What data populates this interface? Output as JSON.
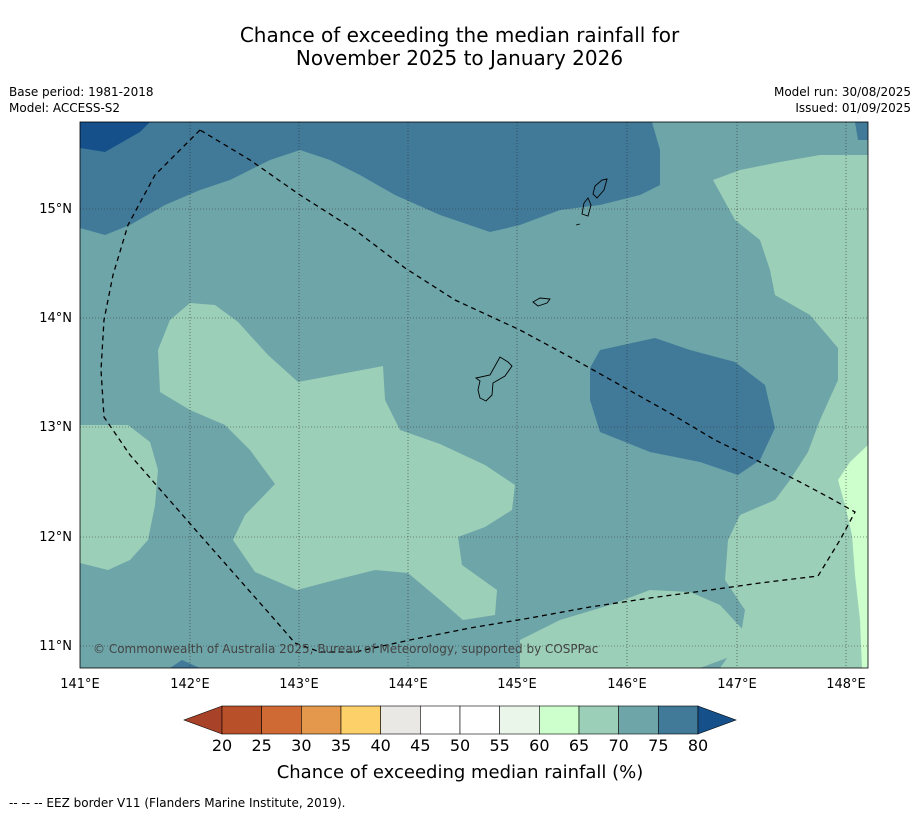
{
  "header": {
    "title_line1": "Chance of exceeding the median rainfall for",
    "title_line2": "November 2025 to January 2026",
    "base_period": "Base period: 1981-2018",
    "model": "Model: ACCESS-S2",
    "model_run": "Model run: 30/08/2025",
    "issued": "Issued: 01/09/2025"
  },
  "map": {
    "lon_ticks": [
      "141°E",
      "142°E",
      "143°E",
      "144°E",
      "145°E",
      "146°E",
      "147°E",
      "148°E"
    ],
    "lat_ticks": [
      "15°N",
      "14°N",
      "13°N",
      "12°N",
      "11°N"
    ],
    "copyright": "© Commonwealth of Australia 2025, Bureau of Meteorology, supported by COSPPac",
    "fill_colors": {
      "c60_65": "#ccffcc",
      "c65_70": "#9ccfb8",
      "c70_75": "#6ea5a8",
      "c75_80": "#417a99",
      "c80plus": "#15508a"
    }
  },
  "colorbar": {
    "title": "Chance of exceeding median rainfall (%)",
    "labels": [
      "20",
      "25",
      "30",
      "35",
      "40",
      "45",
      "50",
      "55",
      "60",
      "65",
      "70",
      "75",
      "80"
    ],
    "colors": [
      "#a8432a",
      "#b8502a",
      "#d06a35",
      "#e3984b",
      "#fed069",
      "#eae8e4",
      "#ffffff",
      "#ffffff",
      "#e9f6e9",
      "#ccffcc",
      "#9ccfb8",
      "#6ea5a8",
      "#417a99",
      "#15508a"
    ]
  },
  "footnote": "--  --  -- EEZ border V11 (Flanders Marine Institute, 2019)."
}
